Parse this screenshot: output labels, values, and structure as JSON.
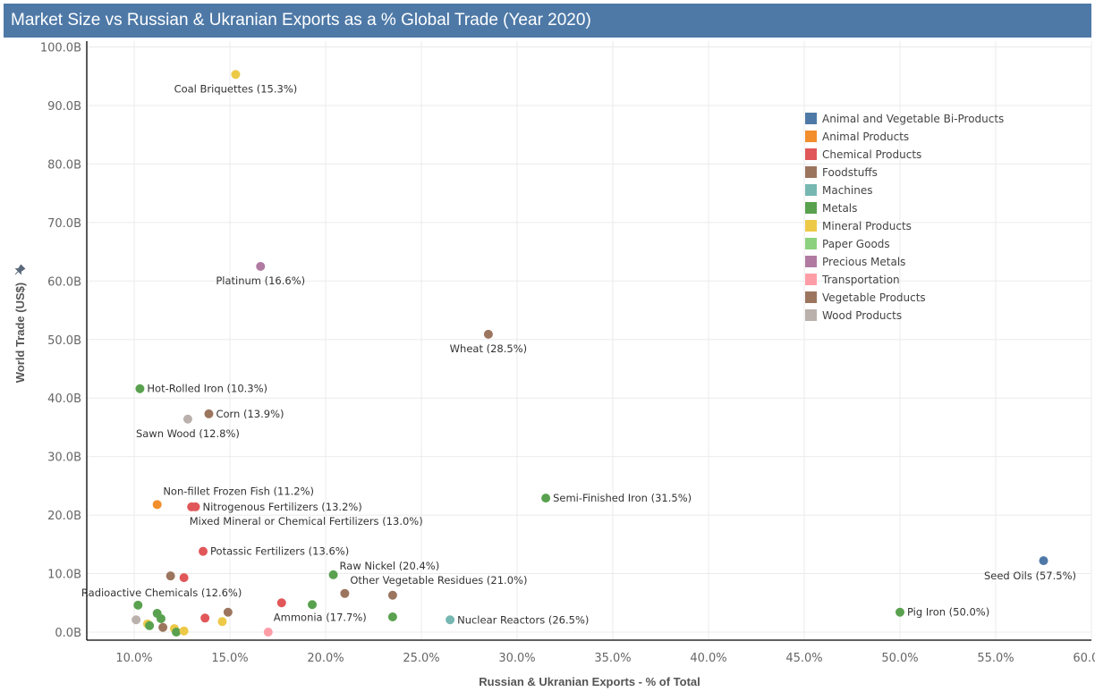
{
  "title": "Market Size vs Russian & Ukranian Exports as a % Global Trade (Year 2020)",
  "chart_data": {
    "type": "scatter",
    "title": "Market Size vs Russian & Ukranian Exports as a % Global Trade (Year 2020)",
    "xlabel": "Russian & Ukranian Exports - % of Total",
    "ylabel": "World Trade (US$)",
    "xlim": [
      7.8,
      60.0
    ],
    "ylim": [
      0,
      100.8
    ],
    "x_ticks": [
      10,
      15,
      20,
      25,
      30,
      35,
      40,
      45,
      50,
      55,
      60
    ],
    "x_tick_labels": [
      "10.0%",
      "15.0%",
      "20.0%",
      "25.0%",
      "30.0%",
      "35.0%",
      "40.0%",
      "45.0%",
      "50.0%",
      "55.0%",
      "60.0%"
    ],
    "y_ticks": [
      0,
      10,
      20,
      30,
      40,
      50,
      60,
      70,
      80,
      90,
      100
    ],
    "y_tick_labels": [
      "0.0B",
      "10.0B",
      "20.0B",
      "30.0B",
      "40.0B",
      "50.0B",
      "60.0B",
      "70.0B",
      "80.0B",
      "90.0B",
      "100.0B"
    ],
    "grid": true,
    "legend_position": "top-right",
    "categories": [
      {
        "name": "Animal and Vegetable Bi-Products",
        "color": "#4e79a7"
      },
      {
        "name": "Animal Products",
        "color": "#f28e2b"
      },
      {
        "name": "Chemical Products",
        "color": "#e15759"
      },
      {
        "name": "Foodstuffs",
        "color": "#9c755f"
      },
      {
        "name": "Machines",
        "color": "#76b7b2"
      },
      {
        "name": "Metals",
        "color": "#59a14f"
      },
      {
        "name": "Mineral Products",
        "color": "#edc948"
      },
      {
        "name": "Paper Goods",
        "color": "#8cd17d"
      },
      {
        "name": "Precious Metals",
        "color": "#b07aa1"
      },
      {
        "name": "Transportation",
        "color": "#ff9da7"
      },
      {
        "name": "Vegetable Products",
        "color": "#9c755f"
      },
      {
        "name": "Wood Products",
        "color": "#bab0ac"
      }
    ],
    "points": [
      {
        "label": "Coal Briquettes (15.3%)",
        "x": 15.3,
        "y": 95.3,
        "category": "Mineral Products",
        "label_pos": "below"
      },
      {
        "label": "Platinum (16.6%)",
        "x": 16.6,
        "y": 62.5,
        "category": "Precious Metals",
        "label_pos": "below"
      },
      {
        "label": "Wheat (28.5%)",
        "x": 28.5,
        "y": 50.9,
        "category": "Vegetable Products",
        "label_pos": "below"
      },
      {
        "label": "Hot-Rolled Iron (10.3%)",
        "x": 10.3,
        "y": 41.6,
        "category": "Metals",
        "label_pos": "right"
      },
      {
        "label": "Corn (13.9%)",
        "x": 13.9,
        "y": 37.3,
        "category": "Vegetable Products",
        "label_pos": "right"
      },
      {
        "label": "Sawn Wood (12.8%)",
        "x": 12.8,
        "y": 36.4,
        "category": "Wood Products",
        "label_pos": "below"
      },
      {
        "label": "Semi-Finished Iron (31.5%)",
        "x": 31.5,
        "y": 22.9,
        "category": "Metals",
        "label_pos": "right"
      },
      {
        "label": "Non-fillet Frozen Fish (11.2%)",
        "x": 11.2,
        "y": 21.8,
        "category": "Animal Products",
        "label_pos": "above"
      },
      {
        "label": "Mixed Mineral or Chemical Fertilizers (13.0%)",
        "x": 13.0,
        "y": 21.4,
        "category": "Chemical Products",
        "label_pos": "below"
      },
      {
        "label": "Nitrogenous Fertilizers (13.2%)",
        "x": 13.2,
        "y": 21.4,
        "category": "Chemical Products",
        "label_pos": "right"
      },
      {
        "label": "Potassic Fertilizers (13.6%)",
        "x": 13.6,
        "y": 13.8,
        "category": "Chemical Products",
        "label_pos": "right"
      },
      {
        "label": "Seed Oils (57.5%)",
        "x": 57.5,
        "y": 12.2,
        "category": "Animal and Vegetable Bi-Products",
        "label_pos": "below"
      },
      {
        "label": "Raw Nickel (20.4%)",
        "x": 20.4,
        "y": 9.8,
        "category": "Metals",
        "label_pos": "above-right"
      },
      {
        "label": "",
        "x": 11.9,
        "y": 9.6,
        "category": "Vegetable Products"
      },
      {
        "label": "Radioactive Chemicals (12.6%)",
        "x": 12.6,
        "y": 9.3,
        "category": "Chemical Products",
        "label_pos": "below"
      },
      {
        "label": "Other Vegetable Residues (21.0%)",
        "x": 21.0,
        "y": 6.6,
        "category": "Vegetable Products",
        "label_pos": "above"
      },
      {
        "label": "",
        "x": 23.5,
        "y": 6.3,
        "category": "Vegetable Products"
      },
      {
        "label": "Ammonia (17.7%)",
        "x": 17.7,
        "y": 5.0,
        "category": "Chemical Products",
        "label_pos": "below"
      },
      {
        "label": "",
        "x": 19.3,
        "y": 4.7,
        "category": "Metals"
      },
      {
        "label": "Nuclear Reactors (26.5%)",
        "x": 26.5,
        "y": 2.1,
        "category": "Machines",
        "label_pos": "right"
      },
      {
        "label": "",
        "x": 23.5,
        "y": 2.6,
        "category": "Metals"
      },
      {
        "label": "Pig Iron (50.0%)",
        "x": 50.0,
        "y": 3.4,
        "category": "Metals",
        "label_pos": "right"
      },
      {
        "label": "",
        "x": 10.2,
        "y": 4.6,
        "category": "Metals"
      },
      {
        "label": "",
        "x": 10.1,
        "y": 2.1,
        "category": "Wood Products"
      },
      {
        "label": "",
        "x": 11.2,
        "y": 3.2,
        "category": "Metals"
      },
      {
        "label": "",
        "x": 11.4,
        "y": 2.3,
        "category": "Metals"
      },
      {
        "label": "",
        "x": 10.7,
        "y": 1.4,
        "category": "Mineral Products"
      },
      {
        "label": "",
        "x": 10.8,
        "y": 1.1,
        "category": "Metals"
      },
      {
        "label": "",
        "x": 11.5,
        "y": 0.8,
        "category": "Vegetable Products"
      },
      {
        "label": "",
        "x": 12.1,
        "y": 0.6,
        "category": "Mineral Products"
      },
      {
        "label": "",
        "x": 12.2,
        "y": 0.0,
        "category": "Metals"
      },
      {
        "label": "",
        "x": 12.6,
        "y": 0.2,
        "category": "Mineral Products"
      },
      {
        "label": "",
        "x": 13.7,
        "y": 2.4,
        "category": "Chemical Products"
      },
      {
        "label": "",
        "x": 14.9,
        "y": 3.4,
        "category": "Vegetable Products"
      },
      {
        "label": "",
        "x": 14.6,
        "y": 1.8,
        "category": "Mineral Products"
      },
      {
        "label": "",
        "x": 17.0,
        "y": 0.0,
        "category": "Transportation"
      }
    ]
  }
}
